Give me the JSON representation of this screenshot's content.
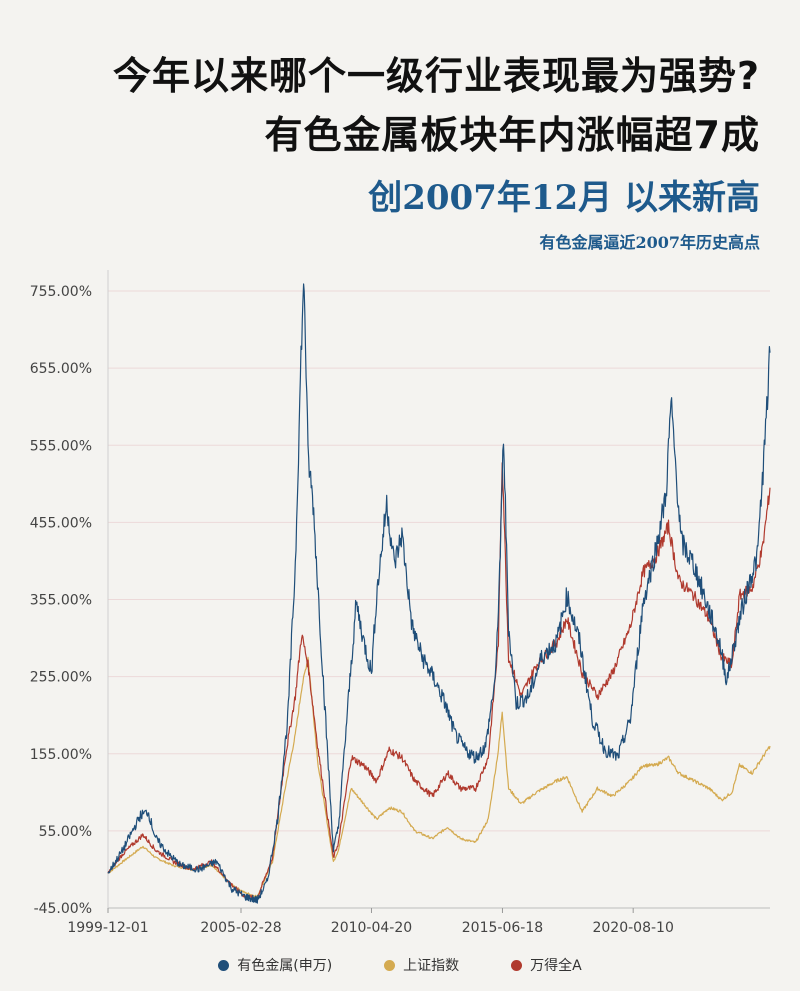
{
  "header": {
    "title_line1": "今年以来哪个一级行业表现最为强势?",
    "title_line2": "有色金属板块年内涨幅超7成",
    "subtitle": "创2007年12月 以来新高",
    "caption": "有色金属逼近2007年历史高点"
  },
  "chart_data": {
    "type": "line",
    "title": "",
    "xlabel": "",
    "ylabel": "",
    "ylim": [
      -45,
      800
    ],
    "y_ticks": [
      "755.00%",
      "655.00%",
      "555.00%",
      "455.00%",
      "355.00%",
      "255.00%",
      "155.00%",
      "55.00%",
      "-45.00%"
    ],
    "y_tick_values": [
      755,
      655,
      555,
      455,
      355,
      255,
      155,
      55,
      -45
    ],
    "x_ticks": [
      "1999-12-01",
      "2005-02-28",
      "2010-04-20",
      "2015-06-18",
      "2020-08-10"
    ],
    "x_tick_years": [
      1999.92,
      2005.16,
      2010.3,
      2015.46,
      2020.61
    ],
    "xlim": [
      1999.92,
      2026.0
    ],
    "grid": "horizontal",
    "legend_position": "bottom",
    "series": [
      {
        "name": "有色金属(申万)",
        "color": "#1f4e79",
        "points": [
          [
            1999.92,
            0
          ],
          [
            2000.5,
            30
          ],
          [
            2001.2,
            75
          ],
          [
            2001.5,
            80
          ],
          [
            2001.8,
            45
          ],
          [
            2002.3,
            25
          ],
          [
            2002.8,
            10
          ],
          [
            2003.5,
            5
          ],
          [
            2004.2,
            15
          ],
          [
            2004.8,
            -20
          ],
          [
            2005.3,
            -30
          ],
          [
            2005.8,
            -35
          ],
          [
            2006.2,
            -10
          ],
          [
            2006.6,
            70
          ],
          [
            2007.0,
            200
          ],
          [
            2007.3,
            400
          ],
          [
            2007.55,
            700
          ],
          [
            2007.65,
            765
          ],
          [
            2007.8,
            540
          ],
          [
            2008.0,
            480
          ],
          [
            2008.4,
            250
          ],
          [
            2008.8,
            30
          ],
          [
            2009.0,
            60
          ],
          [
            2009.4,
            230
          ],
          [
            2009.7,
            350
          ],
          [
            2010.0,
            300
          ],
          [
            2010.3,
            260
          ],
          [
            2010.5,
            360
          ],
          [
            2010.9,
            480
          ],
          [
            2011.2,
            400
          ],
          [
            2011.5,
            440
          ],
          [
            2011.9,
            320
          ],
          [
            2012.3,
            280
          ],
          [
            2012.8,
            250
          ],
          [
            2013.2,
            220
          ],
          [
            2013.6,
            180
          ],
          [
            2014.0,
            160
          ],
          [
            2014.4,
            150
          ],
          [
            2014.8,
            165
          ],
          [
            2015.2,
            260
          ],
          [
            2015.4,
            440
          ],
          [
            2015.5,
            570
          ],
          [
            2015.7,
            320
          ],
          [
            2016.0,
            220
          ],
          [
            2016.5,
            230
          ],
          [
            2017.0,
            280
          ],
          [
            2017.6,
            300
          ],
          [
            2018.0,
            360
          ],
          [
            2018.5,
            300
          ],
          [
            2019.0,
            200
          ],
          [
            2019.5,
            160
          ],
          [
            2020.0,
            150
          ],
          [
            2020.5,
            200
          ],
          [
            2021.0,
            350
          ],
          [
            2021.5,
            420
          ],
          [
            2021.9,
            490
          ],
          [
            2022.1,
            610
          ],
          [
            2022.5,
            430
          ],
          [
            2023.0,
            400
          ],
          [
            2023.5,
            350
          ],
          [
            2024.0,
            300
          ],
          [
            2024.3,
            250
          ],
          [
            2024.8,
            330
          ],
          [
            2025.2,
            380
          ],
          [
            2025.5,
            410
          ],
          [
            2025.8,
            560
          ],
          [
            2026.0,
            675
          ]
        ]
      },
      {
        "name": "上证指数",
        "color": "#d4aa50",
        "points": [
          [
            1999.92,
            0
          ],
          [
            2000.5,
            15
          ],
          [
            2001.3,
            35
          ],
          [
            2001.8,
            20
          ],
          [
            2002.5,
            10
          ],
          [
            2003.2,
            5
          ],
          [
            2004.0,
            10
          ],
          [
            2004.8,
            -15
          ],
          [
            2005.3,
            -25
          ],
          [
            2005.8,
            -30
          ],
          [
            2006.4,
            15
          ],
          [
            2006.9,
            110
          ],
          [
            2007.3,
            180
          ],
          [
            2007.55,
            240
          ],
          [
            2007.8,
            280
          ],
          [
            2008.2,
            140
          ],
          [
            2008.8,
            15
          ],
          [
            2009.0,
            30
          ],
          [
            2009.5,
            110
          ],
          [
            2010.0,
            90
          ],
          [
            2010.5,
            70
          ],
          [
            2011.0,
            85
          ],
          [
            2011.5,
            80
          ],
          [
            2012.0,
            55
          ],
          [
            2012.7,
            45
          ],
          [
            2013.3,
            60
          ],
          [
            2013.8,
            45
          ],
          [
            2014.4,
            40
          ],
          [
            2014.9,
            70
          ],
          [
            2015.3,
            160
          ],
          [
            2015.45,
            210
          ],
          [
            2015.7,
            110
          ],
          [
            2016.2,
            90
          ],
          [
            2016.8,
            105
          ],
          [
            2017.6,
            120
          ],
          [
            2018.0,
            125
          ],
          [
            2018.6,
            80
          ],
          [
            2019.2,
            110
          ],
          [
            2019.8,
            100
          ],
          [
            2020.5,
            120
          ],
          [
            2021.0,
            140
          ],
          [
            2021.5,
            140
          ],
          [
            2022.0,
            150
          ],
          [
            2022.4,
            130
          ],
          [
            2023.0,
            120
          ],
          [
            2023.6,
            110
          ],
          [
            2024.1,
            95
          ],
          [
            2024.5,
            105
          ],
          [
            2024.8,
            140
          ],
          [
            2025.3,
            130
          ],
          [
            2025.7,
            150
          ],
          [
            2026.0,
            165
          ]
        ]
      },
      {
        "name": "万得全A",
        "color": "#b03a2e",
        "points": [
          [
            1999.92,
            0
          ],
          [
            2000.5,
            25
          ],
          [
            2001.3,
            50
          ],
          [
            2001.8,
            30
          ],
          [
            2002.5,
            15
          ],
          [
            2003.2,
            5
          ],
          [
            2004.0,
            15
          ],
          [
            2004.8,
            -15
          ],
          [
            2005.3,
            -30
          ],
          [
            2005.8,
            -32
          ],
          [
            2006.4,
            20
          ],
          [
            2006.9,
            150
          ],
          [
            2007.3,
            230
          ],
          [
            2007.55,
            310
          ],
          [
            2007.8,
            270
          ],
          [
            2008.2,
            160
          ],
          [
            2008.8,
            20
          ],
          [
            2009.0,
            40
          ],
          [
            2009.5,
            150
          ],
          [
            2010.0,
            140
          ],
          [
            2010.5,
            120
          ],
          [
            2011.0,
            160
          ],
          [
            2011.5,
            150
          ],
          [
            2012.0,
            120
          ],
          [
            2012.7,
            100
          ],
          [
            2013.3,
            130
          ],
          [
            2013.8,
            110
          ],
          [
            2014.4,
            110
          ],
          [
            2014.9,
            150
          ],
          [
            2015.3,
            300
          ],
          [
            2015.45,
            540
          ],
          [
            2015.7,
            280
          ],
          [
            2016.2,
            230
          ],
          [
            2016.8,
            270
          ],
          [
            2017.6,
            300
          ],
          [
            2018.0,
            330
          ],
          [
            2018.6,
            260
          ],
          [
            2019.2,
            230
          ],
          [
            2019.8,
            260
          ],
          [
            2020.5,
            320
          ],
          [
            2021.0,
            390
          ],
          [
            2021.5,
            410
          ],
          [
            2022.0,
            450
          ],
          [
            2022.4,
            380
          ],
          [
            2023.0,
            360
          ],
          [
            2023.6,
            330
          ],
          [
            2024.1,
            280
          ],
          [
            2024.5,
            270
          ],
          [
            2024.8,
            360
          ],
          [
            2025.3,
            370
          ],
          [
            2025.7,
            420
          ],
          [
            2026.0,
            500
          ]
        ]
      }
    ]
  }
}
